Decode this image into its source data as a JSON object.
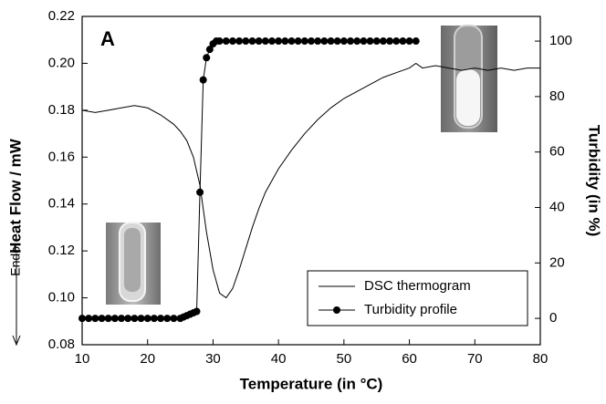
{
  "chart_data": {
    "type": "line",
    "panel_label": "A",
    "xlabel": "Temperature (in °C)",
    "ylabel": "Heat Flow / mW",
    "ylabel_note": "Endo",
    "y2label": "Turbidity (in %)",
    "xlim": [
      10,
      80
    ],
    "xticks": [
      10,
      20,
      30,
      40,
      50,
      60,
      70,
      80
    ],
    "ylim": [
      0.08,
      0.22
    ],
    "yticks": [
      0.08,
      {
        "value": 0.1,
        "label": "0.10"
      },
      0.12,
      0.14,
      0.16,
      0.18,
      {
        "value": 0.2,
        "label": "0.20"
      },
      0.22
    ],
    "y2lim": [
      -9.5,
      108.9
    ],
    "y2ticks": [
      0,
      20,
      40,
      60,
      80,
      100
    ],
    "legend": "lower right",
    "series": [
      {
        "name": "DSC thermogram",
        "color": "#000000",
        "marker": false,
        "x": [
          10,
          12,
          14,
          16,
          18,
          20,
          22,
          24,
          25,
          26,
          27,
          28,
          29,
          30,
          31,
          32,
          33,
          34,
          35,
          36,
          37,
          38,
          40,
          42,
          44,
          46,
          48,
          50,
          52,
          54,
          56,
          58,
          60,
          61,
          62,
          64,
          66,
          68,
          70,
          72,
          74,
          76,
          78,
          80
        ],
        "values": [
          0.18,
          0.179,
          0.18,
          0.181,
          0.182,
          0.181,
          0.178,
          0.174,
          0.171,
          0.167,
          0.16,
          0.148,
          0.128,
          0.112,
          0.102,
          0.1,
          0.104,
          0.112,
          0.121,
          0.13,
          0.138,
          0.145,
          0.155,
          0.163,
          0.17,
          0.176,
          0.181,
          0.185,
          0.188,
          0.191,
          0.194,
          0.196,
          0.198,
          0.2,
          0.198,
          0.199,
          0.198,
          0.197,
          0.198,
          0.197,
          0.198,
          0.197,
          0.198,
          0.198
        ]
      },
      {
        "name": "Turbidity profile",
        "color": "#000000",
        "marker": true,
        "axis": "y2",
        "x": [
          10,
          11,
          12,
          13,
          14,
          15,
          16,
          17,
          18,
          19,
          20,
          21,
          22,
          23,
          24,
          25,
          25.5,
          26,
          26.5,
          27,
          27.5,
          28,
          28.5,
          29,
          29.5,
          30,
          30.5,
          31,
          32,
          33,
          34,
          35,
          36,
          37,
          38,
          39,
          40,
          41,
          42,
          43,
          44,
          45,
          46,
          47,
          48,
          49,
          50,
          51,
          52,
          53,
          54,
          55,
          56,
          57,
          58,
          59,
          60,
          61
        ],
        "values": [
          0,
          0,
          0,
          0,
          0,
          0,
          0,
          0,
          0,
          0,
          0,
          0,
          0,
          0,
          0,
          0,
          0.5,
          1,
          1.5,
          2,
          2.5,
          45.5,
          86,
          94,
          97,
          99,
          100,
          100,
          100,
          100,
          100,
          100,
          100,
          100,
          100,
          100,
          100,
          100,
          100,
          100,
          100,
          100,
          100,
          100,
          100,
          100,
          100,
          100,
          100,
          100,
          100,
          100,
          100,
          100,
          100,
          100,
          100,
          100
        ]
      }
    ]
  }
}
